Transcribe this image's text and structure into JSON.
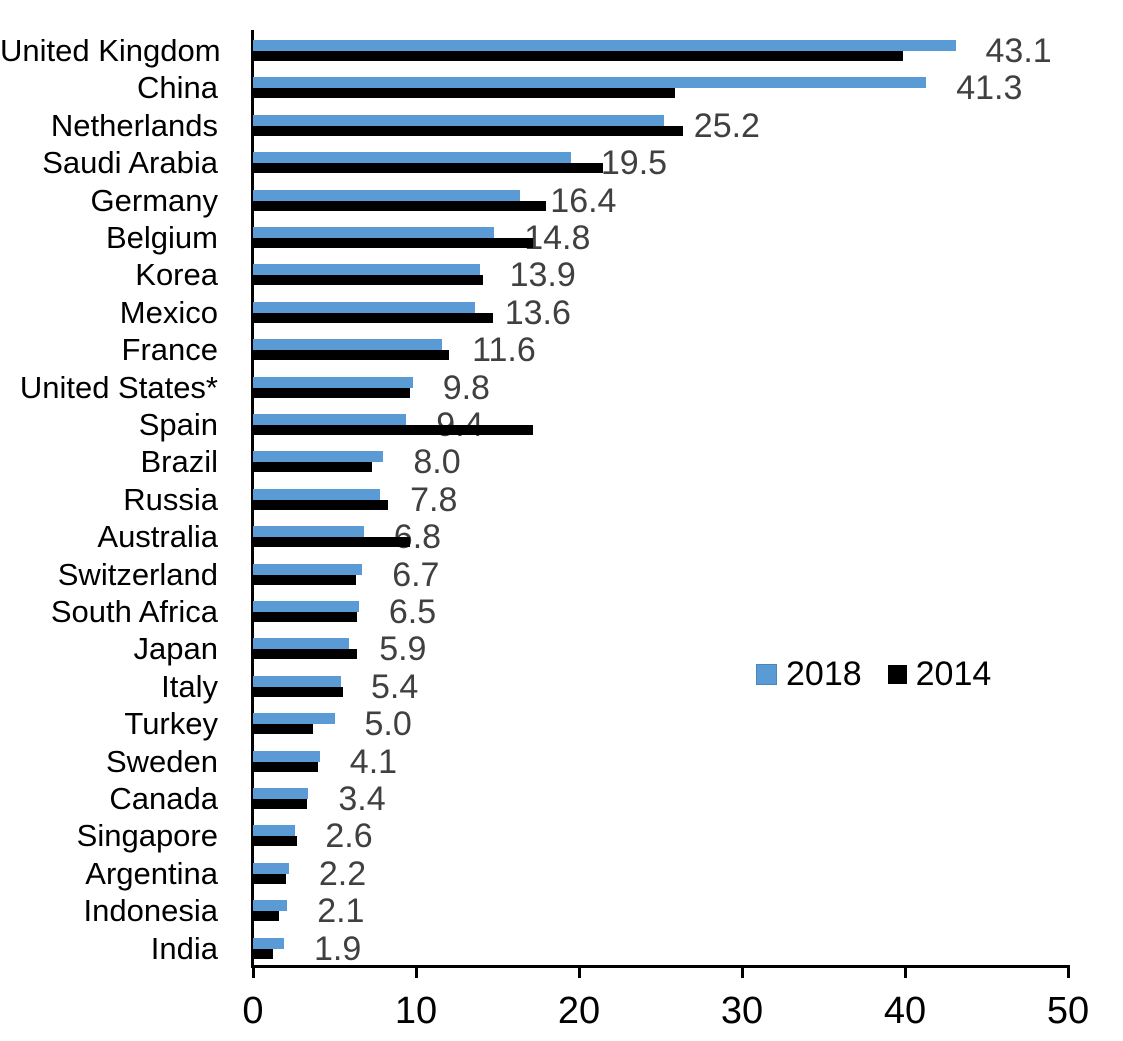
{
  "chart_data": {
    "type": "bar",
    "orientation": "horizontal",
    "title": "",
    "xlabel": "",
    "ylabel": "",
    "xlim": [
      0,
      50
    ],
    "x_ticks": [
      "0",
      "10",
      "20",
      "30",
      "40",
      "50"
    ],
    "grid": false,
    "legend_position": "middle-right",
    "categories": [
      "United Kingdom",
      "China",
      "Netherlands",
      "Saudi Arabia",
      "Germany",
      "Belgium",
      "Korea",
      "Mexico",
      "France",
      "United States*",
      "Spain",
      "Brazil",
      "Russia",
      "Australia",
      "Switzerland",
      "South Africa",
      "Japan",
      "Italy",
      "Turkey",
      "Sweden",
      "Canada",
      "Singapore",
      "Argentina",
      "Indonesia",
      "India"
    ],
    "series": [
      {
        "name": "2018",
        "color": "#5B9BD5",
        "values": [
          43.1,
          41.3,
          25.2,
          19.5,
          16.4,
          14.8,
          13.9,
          13.6,
          11.6,
          9.8,
          9.4,
          8.0,
          7.8,
          6.8,
          6.7,
          6.5,
          5.9,
          5.4,
          5.0,
          4.1,
          3.4,
          2.6,
          2.2,
          2.1,
          1.9
        ],
        "data_labels": [
          "43.1",
          "41.3",
          "25.2",
          "19.5",
          "16.4",
          "14.8",
          "13.9",
          "13.6",
          "11.6",
          "9.8",
          "9.4",
          "8.0",
          "7.8",
          "6.8",
          "6.7",
          "6.5",
          "5.9",
          "5.4",
          "5.0",
          "4.1",
          "3.4",
          "2.6",
          "2.2",
          "2.1",
          "1.9"
        ]
      },
      {
        "name": "2014",
        "color": "#000000",
        "values": [
          39.9,
          25.9,
          26.4,
          21.5,
          18.0,
          17.2,
          14.1,
          14.7,
          12.0,
          9.6,
          17.2,
          7.3,
          8.3,
          9.6,
          6.3,
          6.4,
          6.4,
          5.5,
          3.7,
          4.0,
          3.3,
          2.7,
          2.0,
          1.6,
          1.2
        ],
        "data_labels": []
      }
    ]
  },
  "legend": {
    "items": [
      {
        "label": "2018",
        "color": "#5B9BD5"
      },
      {
        "label": "2014",
        "color": "#000000"
      }
    ]
  },
  "colors": {
    "series_2018": "#5B9BD5",
    "series_2014": "#000000",
    "value_label": "#404040",
    "axis": "#000000",
    "background": "#ffffff"
  }
}
